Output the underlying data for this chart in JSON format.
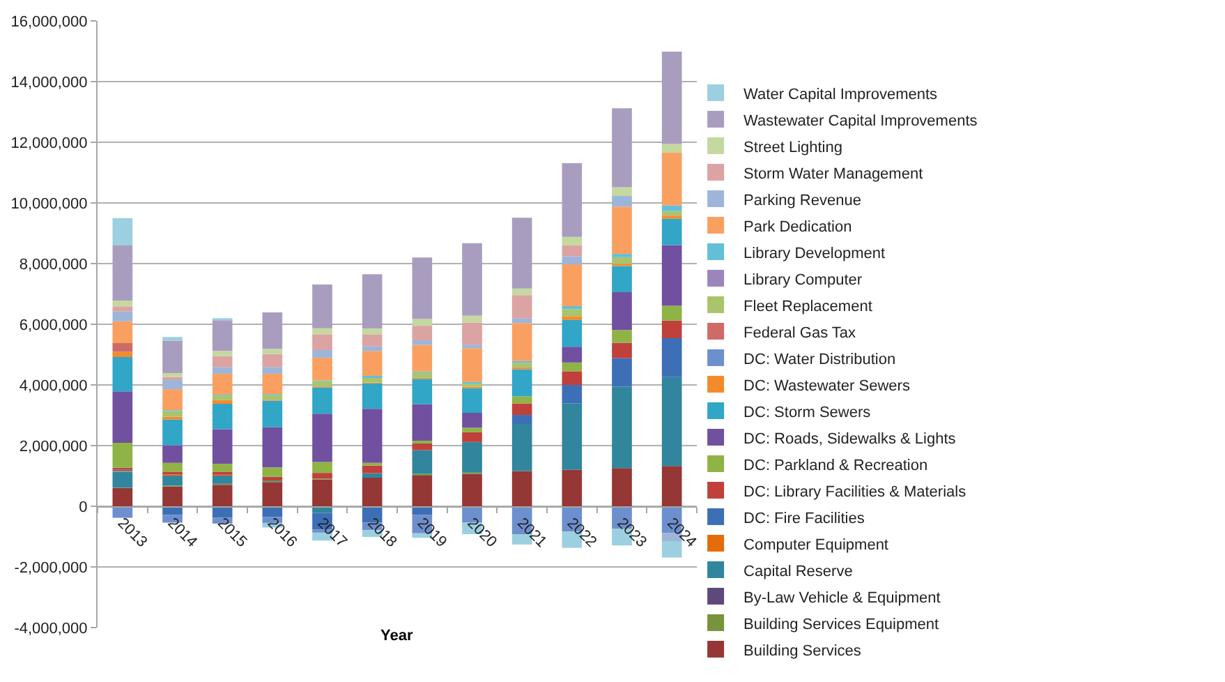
{
  "chart_data": {
    "type": "bar",
    "xlabel": "Year",
    "categories": [
      "2013",
      "2014",
      "2015",
      "2016",
      "2017",
      "2018",
      "2019",
      "2020",
      "2021",
      "2022",
      "2023",
      "2024"
    ],
    "stacked": true,
    "grid": "y",
    "legend": "right",
    "ylim": [
      -4000000,
      16000000
    ],
    "yticks": [
      {
        "value": -4000000,
        "label": "-4,000,000"
      },
      {
        "value": -2000000,
        "label": "-2,000,000"
      },
      0,
      {
        "value": 2000000,
        "label": "2,000,000"
      },
      {
        "value": 4000000,
        "label": "4,000,000"
      },
      {
        "value": 6000000,
        "label": "6,000,000"
      },
      {
        "value": 8000000,
        "label": "8,000,000"
      },
      {
        "value": 10000000,
        "label": "10,000,000"
      },
      {
        "value": 12000000,
        "label": "12,000,000"
      },
      {
        "value": 14000000,
        "label": "14,000,000"
      },
      {
        "value": 16000000,
        "label": "16,000,000"
      }
    ],
    "series": [
      {
        "name": "Building Services",
        "color": "#953735",
        "values": [
          600000,
          650000,
          690000,
          800000,
          880000,
          940000,
          1010000,
          1070000,
          1160000,
          1200000,
          1260000,
          1330000
        ]
      },
      {
        "name": "Building Services Equipment",
        "color": "#77933c",
        "values": [
          10000,
          30000,
          30000,
          30000,
          30000,
          0,
          60000,
          40000,
          0,
          0,
          0,
          0
        ]
      },
      {
        "name": "By-Law Vehicle & Equipment",
        "color": "#5f497a",
        "values": [
          0,
          0,
          30000,
          0,
          0,
          0,
          0,
          0,
          0,
          0,
          0,
          0
        ]
      },
      {
        "name": "Capital Reserve",
        "color": "#31859c",
        "values": [
          530000,
          330000,
          260000,
          20000,
          -220000,
          150000,
          780000,
          1010000,
          1550000,
          2190000,
          2680000,
          2930000
        ]
      },
      {
        "name": "Computer Equipment",
        "color": "#e46c0a",
        "values": [
          30000,
          40000,
          30000,
          0,
          0,
          0,
          0,
          0,
          0,
          0,
          0,
          0
        ]
      },
      {
        "name": "DC: Fire Facilities",
        "color": "#3d6fb6",
        "values": [
          40000,
          -280000,
          -380000,
          -350000,
          -550000,
          -540000,
          -280000,
          0,
          300000,
          610000,
          940000,
          1280000
        ]
      },
      {
        "name": "DC: Library Facilities & Materials",
        "color": "#c0403c",
        "values": [
          60000,
          90000,
          100000,
          120000,
          190000,
          250000,
          220000,
          320000,
          380000,
          450000,
          510000,
          580000
        ]
      },
      {
        "name": "DC: Parkland & Recreation",
        "color": "#8fb345",
        "values": [
          820000,
          290000,
          260000,
          310000,
          360000,
          90000,
          90000,
          150000,
          230000,
          290000,
          420000,
          490000
        ]
      },
      {
        "name": "DC: Roads, Sidewalks & Lights",
        "color": "#7150a0",
        "values": [
          1700000,
          580000,
          1140000,
          1330000,
          1590000,
          1780000,
          1200000,
          490000,
          0,
          520000,
          1250000,
          2000000
        ]
      },
      {
        "name": "DC: Storm Sewers",
        "color": "#31a6c6",
        "values": [
          1130000,
          850000,
          840000,
          870000,
          870000,
          840000,
          840000,
          810000,
          900000,
          880000,
          860000,
          870000
        ]
      },
      {
        "name": "DC: Wastewater Sewers",
        "color": "#f58a2c",
        "values": [
          170000,
          90000,
          120000,
          30000,
          30000,
          30000,
          40000,
          50000,
          60000,
          110000,
          70000,
          100000
        ]
      },
      {
        "name": "DC: Water Distribution",
        "color": "#6d8fce",
        "values": [
          -380000,
          -260000,
          -190000,
          -200000,
          -100000,
          -250000,
          -610000,
          -540000,
          -920000,
          -830000,
          -740000,
          -880000
        ]
      },
      {
        "name": "Federal Gas Tax",
        "color": "#cd6b68",
        "values": [
          290000,
          0,
          0,
          0,
          0,
          0,
          0,
          0,
          0,
          0,
          0,
          0
        ]
      },
      {
        "name": "Fleet Replacement",
        "color": "#a9c46b",
        "values": [
          0,
          190000,
          150000,
          160000,
          170000,
          150000,
          170000,
          100000,
          150000,
          250000,
          220000,
          150000
        ]
      },
      {
        "name": "Library Computer",
        "color": "#9b85bb",
        "values": [
          0,
          0,
          0,
          0,
          0,
          0,
          0,
          0,
          0,
          0,
          0,
          0
        ]
      },
      {
        "name": "Library Development",
        "color": "#63bfd8",
        "values": [
          0,
          30000,
          30000,
          30000,
          30000,
          70000,
          30000,
          60000,
          60000,
          100000,
          110000,
          190000
        ]
      },
      {
        "name": "Park Dedication",
        "color": "#f9a061",
        "values": [
          720000,
          690000,
          690000,
          670000,
          750000,
          820000,
          880000,
          1110000,
          1250000,
          1380000,
          1560000,
          1740000
        ]
      },
      {
        "name": "Parking Revenue",
        "color": "#9db5da",
        "values": [
          320000,
          300000,
          220000,
          220000,
          250000,
          150000,
          150000,
          120000,
          150000,
          260000,
          350000,
          -270000
        ]
      },
      {
        "name": "Storm Water Management",
        "color": "#dba3a2",
        "values": [
          170000,
          100000,
          360000,
          430000,
          520000,
          400000,
          480000,
          730000,
          770000,
          360000,
          0,
          0
        ]
      },
      {
        "name": "Street Lighting",
        "color": "#c4d8a0",
        "values": [
          190000,
          130000,
          170000,
          170000,
          200000,
          190000,
          220000,
          220000,
          220000,
          280000,
          290000,
          290000
        ]
      },
      {
        "name": "Wastewater Capital Improvements",
        "color": "#a99dbf",
        "values": [
          1820000,
          1070000,
          1010000,
          1200000,
          1440000,
          1790000,
          2030000,
          2390000,
          2330000,
          2430000,
          2600000,
          3040000
        ]
      },
      {
        "name": "Water Capital Improvements",
        "color": "#9ccfdf",
        "values": [
          900000,
          120000,
          70000,
          -150000,
          -260000,
          -220000,
          -150000,
          -380000,
          -340000,
          -540000,
          -550000,
          -540000
        ]
      }
    ]
  }
}
